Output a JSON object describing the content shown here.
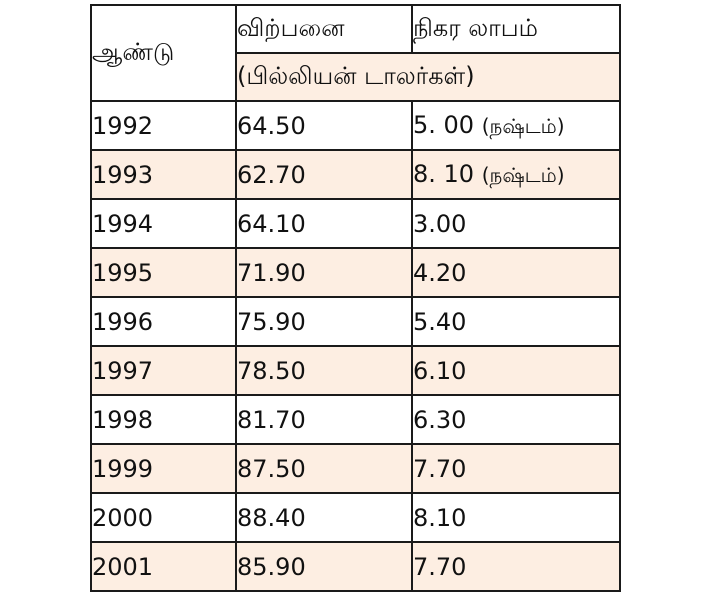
{
  "table": {
    "headers": {
      "year": "ஆண்டு",
      "sales": "விற்பனை",
      "profit": "நிகர லாபம்",
      "unit": "(பில்லியன் டாலர்கள்)"
    },
    "rows": [
      {
        "year": "1992",
        "sales": "64.50",
        "profit": "5. 00",
        "note": "(நஷ்டம்)"
      },
      {
        "year": "1993",
        "sales": "62.70",
        "profit": "8. 10",
        "note": "(நஷ்டம்)"
      },
      {
        "year": "1994",
        "sales": "64.10",
        "profit": "3.00",
        "note": ""
      },
      {
        "year": "1995",
        "sales": "71.90",
        "profit": "4.20",
        "note": ""
      },
      {
        "year": "1996",
        "sales": "75.90",
        "profit": "5.40",
        "note": ""
      },
      {
        "year": "1997",
        "sales": "78.50",
        "profit": "6.10",
        "note": ""
      },
      {
        "year": "1998",
        "sales": "81.70",
        "profit": "6.30",
        "note": ""
      },
      {
        "year": "1999",
        "sales": "87.50",
        "profit": "7.70",
        "note": ""
      },
      {
        "year": "2000",
        "sales": "88.40",
        "profit": "8.10",
        "note": ""
      },
      {
        "year": "2001",
        "sales": "85.90",
        "profit": "7.70",
        "note": ""
      }
    ]
  },
  "colors": {
    "row_shade": "#fdeee2",
    "border": "#1a1a1a"
  }
}
